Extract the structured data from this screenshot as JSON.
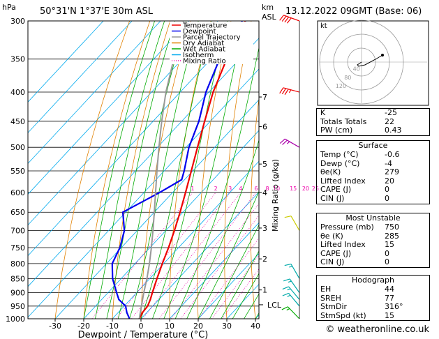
{
  "header": {
    "location": "50°31'N  1°37'E  30m  ASL",
    "datetime": "13.12.2022  09GMT  (Base: 06)",
    "p_unit": "hPa",
    "km_unit": "km",
    "asl_unit": "ASL"
  },
  "legend": [
    {
      "label": "Temperature",
      "color": "#ee0000",
      "style": "solid"
    },
    {
      "label": "Dewpoint",
      "color": "#0000ee",
      "style": "solid"
    },
    {
      "label": "Parcel Trajectory",
      "color": "#999999",
      "style": "solid"
    },
    {
      "label": "Dry Adiabat",
      "color": "#e08000",
      "style": "solid"
    },
    {
      "label": "Wet Adiabat",
      "color": "#00aa00",
      "style": "solid"
    },
    {
      "label": "Isotherm",
      "color": "#00aaee",
      "style": "solid"
    },
    {
      "label": "Mixing Ratio",
      "color": "#ee00aa",
      "style": "dotted"
    }
  ],
  "chart_data": {
    "type": "line",
    "xlabel": "Dewpoint / Temperature (°C)",
    "ylabel": "hPa",
    "mixing_ratio_label": "Mixing Ratio (g/kg)",
    "pressure_ticks": [
      300,
      350,
      400,
      450,
      500,
      550,
      600,
      650,
      700,
      750,
      800,
      850,
      900,
      950,
      1000
    ],
    "temp_ticks": [
      -30,
      -20,
      -10,
      0,
      10,
      20,
      30,
      40
    ],
    "xlim": [
      -40,
      40
    ],
    "ylim": [
      300,
      1000
    ],
    "km_ticks": [
      {
        "km": "7",
        "p": 408
      },
      {
        "km": "6",
        "p": 460
      },
      {
        "km": "5",
        "p": 535
      },
      {
        "km": "4",
        "p": 600
      },
      {
        "km": "3",
        "p": 693
      },
      {
        "km": "2",
        "p": 785
      },
      {
        "km": "1",
        "p": 890
      }
    ],
    "lcl": {
      "label": "LCL",
      "p": 945
    },
    "mixing_ratio_values": [
      "1",
      "2",
      "3",
      "4",
      "6",
      "8",
      "10",
      "15",
      "20",
      "25"
    ],
    "series": [
      {
        "name": "Temperature",
        "color": "#ee0000",
        "points": [
          [
            1000,
            -0.6
          ],
          [
            975,
            -1.5
          ],
          [
            950,
            -1.8
          ],
          [
            925,
            -3.0
          ],
          [
            900,
            -4.5
          ],
          [
            850,
            -7.5
          ],
          [
            800,
            -10.5
          ],
          [
            750,
            -13.5
          ],
          [
            700,
            -17.0
          ],
          [
            650,
            -21.0
          ],
          [
            600,
            -25.5
          ],
          [
            550,
            -30.5
          ],
          [
            500,
            -36.0
          ],
          [
            450,
            -42.0
          ],
          [
            400,
            -48.5
          ],
          [
            350,
            -54.5
          ],
          [
            300,
            -60.5
          ]
        ]
      },
      {
        "name": "Dewpoint",
        "color": "#0000ee",
        "points": [
          [
            1000,
            -4.0
          ],
          [
            975,
            -7.0
          ],
          [
            950,
            -9.5
          ],
          [
            925,
            -14.0
          ],
          [
            900,
            -17.0
          ],
          [
            850,
            -23.0
          ],
          [
            800,
            -28.0
          ],
          [
            750,
            -30.5
          ],
          [
            700,
            -34.5
          ],
          [
            650,
            -41.0
          ],
          [
            600,
            -34.5
          ],
          [
            570,
            -31.0
          ],
          [
            550,
            -33.0
          ],
          [
            500,
            -39.0
          ],
          [
            450,
            -44.0
          ],
          [
            400,
            -51.0
          ],
          [
            350,
            -57.0
          ],
          [
            300,
            -61.5
          ]
        ]
      },
      {
        "name": "Parcel Trajectory",
        "color": "#999999",
        "points": [
          [
            1000,
            -0.6
          ],
          [
            945,
            -4.3
          ],
          [
            900,
            -7.5
          ],
          [
            850,
            -11.0
          ],
          [
            800,
            -15.0
          ],
          [
            750,
            -19.5
          ],
          [
            700,
            -24.5
          ],
          [
            650,
            -30.0
          ],
          [
            600,
            -36.0
          ],
          [
            550,
            -42.5
          ],
          [
            500,
            -49.5
          ],
          [
            450,
            -57.0
          ],
          [
            400,
            -65.0
          ],
          [
            350,
            -73.0
          ],
          [
            300,
            -82.0
          ]
        ]
      }
    ],
    "winds": [
      {
        "p": 300,
        "dir": 290,
        "spd": 40,
        "color": "#ee0000"
      },
      {
        "p": 400,
        "dir": 285,
        "spd": 35,
        "color": "#ee0000"
      },
      {
        "p": 500,
        "dir": 300,
        "spd": 25,
        "color": "#aa00aa"
      },
      {
        "p": 700,
        "dir": 330,
        "spd": 10,
        "color": "#cccc00"
      },
      {
        "p": 850,
        "dir": 330,
        "spd": 15,
        "color": "#00aaaa"
      },
      {
        "p": 900,
        "dir": 325,
        "spd": 15,
        "color": "#00aaaa"
      },
      {
        "p": 925,
        "dir": 320,
        "spd": 15,
        "color": "#00aaaa"
      },
      {
        "p": 950,
        "dir": 320,
        "spd": 15,
        "color": "#00aaaa"
      },
      {
        "p": 1000,
        "dir": 316,
        "spd": 15,
        "color": "#00aa00"
      }
    ]
  },
  "hodograph": {
    "unit": "kt",
    "ring_labels": [
      "40",
      "80",
      "120"
    ],
    "points": [
      [
        0,
        0
      ],
      [
        -3,
        2
      ],
      [
        -6,
        4
      ],
      [
        -4,
        6
      ],
      [
        5,
        4
      ],
      [
        20,
        -4
      ],
      [
        30,
        -10
      ]
    ]
  },
  "indices": {
    "rows": [
      [
        "K",
        "-25"
      ],
      [
        "Totals Totals",
        "22"
      ],
      [
        "PW (cm)",
        "0.43"
      ]
    ],
    "surface": {
      "title": "Surface",
      "rows": [
        [
          "Temp (°C)",
          "-0.6"
        ],
        [
          "Dewp (°C)",
          "-4"
        ],
        [
          "θe(K)",
          "279"
        ],
        [
          "Lifted Index",
          "20"
        ],
        [
          "CAPE (J)",
          "0"
        ],
        [
          "CIN (J)",
          "0"
        ]
      ]
    },
    "unstable": {
      "title": "Most Unstable",
      "rows": [
        [
          "Pressure (mb)",
          "750"
        ],
        [
          "θe (K)",
          "285"
        ],
        [
          "Lifted Index",
          "15"
        ],
        [
          "CAPE (J)",
          "0"
        ],
        [
          "CIN (J)",
          "0"
        ]
      ]
    },
    "hodograph": {
      "title": "Hodograph",
      "rows": [
        [
          "EH",
          "44"
        ],
        [
          "SREH",
          "77"
        ],
        [
          "StmDir",
          "316°"
        ],
        [
          "StmSpd (kt)",
          "15"
        ]
      ]
    }
  },
  "footer": "© weatheronline.co.uk"
}
